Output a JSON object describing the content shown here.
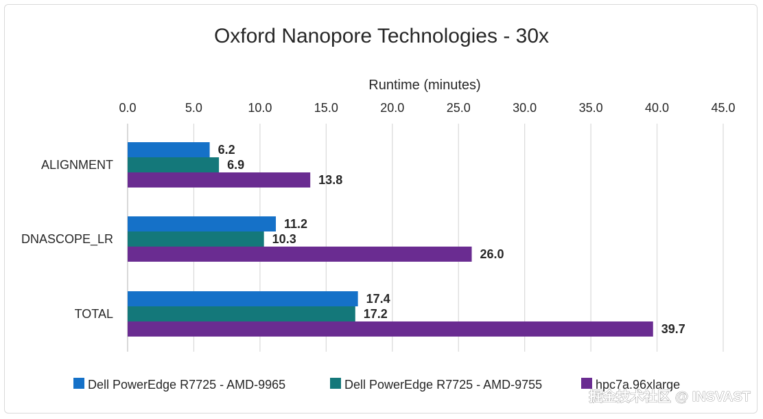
{
  "chart_data": {
    "type": "bar",
    "orientation": "horizontal",
    "title": "Oxford Nanopore Technologies - 30x",
    "xlabel": "Runtime (minutes)",
    "xaxis_position": "top",
    "xlim": [
      0,
      45
    ],
    "xticks": [
      "0.0",
      "5.0",
      "10.0",
      "15.0",
      "20.0",
      "25.0",
      "30.0",
      "35.0",
      "40.0",
      "45.0"
    ],
    "grid": true,
    "categories": [
      "ALIGNMENT",
      "DNASCOPE_LR",
      "TOTAL"
    ],
    "series": [
      {
        "name": "Dell PowerEdge R7725 - AMD-9965",
        "values": [
          6.2,
          11.2,
          17.4
        ],
        "labels": [
          "6.2",
          "11.2",
          "17.4"
        ],
        "color": "#1571c8"
      },
      {
        "name": "Dell PowerEdge R7725 - AMD-9755",
        "values": [
          6.9,
          10.3,
          17.2
        ],
        "labels": [
          "6.9",
          "10.3",
          "17.2"
        ],
        "color": "#14787a"
      },
      {
        "name": "hpc7a.96xlarge",
        "values": [
          13.8,
          26.0,
          39.7
        ],
        "labels": [
          "13.8",
          "26.0",
          "39.7"
        ],
        "color": "#6a2c91"
      }
    ],
    "legend_position": "bottom"
  },
  "watermark": "掘金技术社区 @ INSVAST"
}
